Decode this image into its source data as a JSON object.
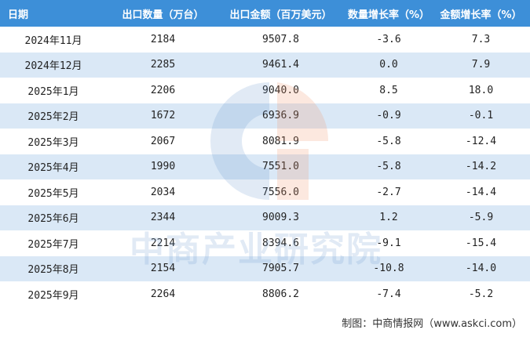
{
  "table": {
    "header": [
      "日期",
      "出口数量（万台）",
      "出口金额（百万美元）",
      "数量增长率（%）",
      "金额增长率（%）"
    ],
    "rows": [
      [
        "2024年11月",
        "2184",
        "9507.8",
        "-3.6",
        "7.3"
      ],
      [
        "2024年12月",
        "2285",
        "9461.4",
        "0.0",
        "7.9"
      ],
      [
        "2025年1月",
        "2206",
        "9040.0",
        "8.5",
        "18.0"
      ],
      [
        "2025年2月",
        "1672",
        "6936.9",
        "-0.9",
        "-0.1"
      ],
      [
        "2025年3月",
        "2067",
        "8081.9",
        "-5.8",
        "-12.4"
      ],
      [
        "2025年4月",
        "1990",
        "7551.0",
        "-5.8",
        "-14.2"
      ],
      [
        "2025年5月",
        "2034",
        "7556.0",
        "-2.7",
        "-14.4"
      ],
      [
        "2025年6月",
        "2344",
        "9009.3",
        "1.2",
        "-5.9"
      ],
      [
        "2025年7月",
        "2214",
        "8394.6",
        "-9.1",
        "-15.4"
      ],
      [
        "2025年8月",
        "2154",
        "7905.7",
        "-10.8",
        "-14.0"
      ],
      [
        "2025年9月",
        "2264",
        "8806.2",
        "-7.4",
        "-5.2"
      ]
    ]
  },
  "watermark": "中商产业研究院",
  "footer": "制图：中商情报网（www.askci.com）"
}
